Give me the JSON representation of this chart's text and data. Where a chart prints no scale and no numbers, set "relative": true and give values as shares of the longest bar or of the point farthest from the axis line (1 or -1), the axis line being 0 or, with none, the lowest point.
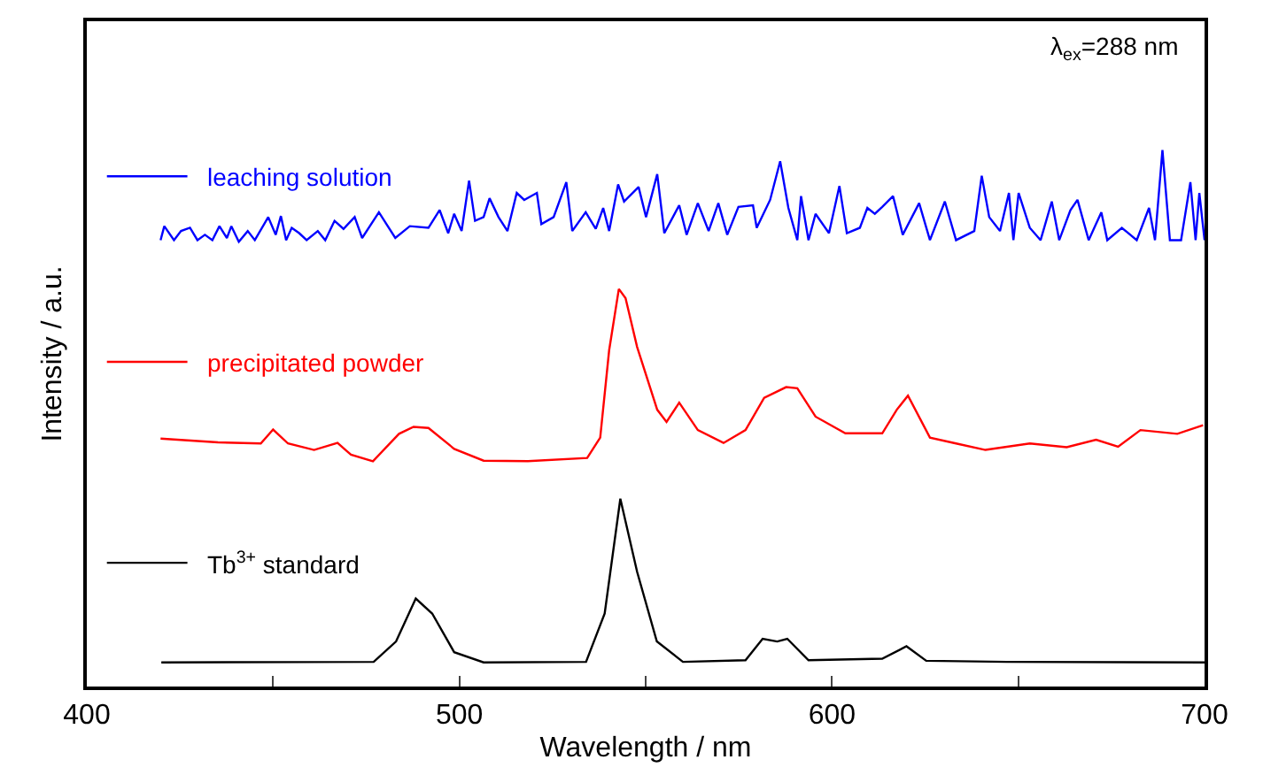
{
  "chart_data": {
    "type": "line",
    "relative": true,
    "legend": "left",
    "xlabel": "Wavelength / nm",
    "ylabel": "Intensity / a.u.",
    "xlim": [
      400,
      700
    ],
    "xticks": [
      400,
      {
        "value": 450,
        "label": null
      },
      500,
      {
        "value": 550,
        "label": null
      },
      600,
      {
        "value": 650,
        "label": null
      },
      700
    ],
    "annotations": [
      "λ$_{ex}$=288 nm"
    ],
    "series": [
      {
        "name": "leaching solution",
        "color": "#0000ff",
        "x": [
          419.8,
          420.8,
          423.4,
          425.3,
          427.7,
          429.7,
          431.7,
          433.7,
          435.6,
          437.6,
          438.8,
          440.8,
          443.2,
          445.1,
          448.7,
          450.7,
          452.1,
          453.5,
          455.0,
          457.0,
          459.0,
          462.0,
          464.0,
          466.5,
          468.9,
          471.9,
          473.9,
          478.4,
          482.8,
          486.7,
          491.7,
          494.7,
          497.0,
          498.6,
          500.6,
          502.6,
          504.2,
          506.5,
          508.1,
          510.5,
          512.9,
          515.4,
          517.4,
          520.8,
          522.0,
          525.3,
          528.7,
          530.3,
          533.9,
          536.6,
          538.6,
          540.2,
          542.6,
          544.2,
          548.1,
          550.1,
          553.1,
          555.0,
          559.0,
          561.0,
          564.0,
          566.9,
          569.5,
          571.9,
          574.9,
          578.8,
          579.8,
          583.4,
          586.1,
          588.3,
          590.7,
          591.7,
          593.7,
          595.6,
          599.2,
          602.0,
          604.0,
          607.5,
          609.5,
          611.5,
          613.5,
          616.4,
          619.0,
          623.4,
          626.3,
          630.3,
          633.3,
          638.2,
          640.2,
          642.2,
          645.1,
          647.5,
          648.7,
          650.1,
          653.1,
          656.0,
          659.0,
          661.0,
          664.0,
          665.9,
          668.9,
          672.3,
          673.9,
          677.8,
          681.8,
          685.1,
          686.7,
          688.7,
          690.7,
          693.7,
          696.2,
          697.6,
          698.6,
          700.0
        ],
        "values": [
          0.832,
          0.858,
          0.832,
          0.849,
          0.855,
          0.832,
          0.842,
          0.832,
          0.858,
          0.836,
          0.858,
          0.829,
          0.849,
          0.832,
          0.875,
          0.842,
          0.877,
          0.832,
          0.855,
          0.845,
          0.832,
          0.849,
          0.832,
          0.868,
          0.853,
          0.875,
          0.836,
          0.884,
          0.836,
          0.858,
          0.855,
          0.888,
          0.845,
          0.881,
          0.849,
          0.943,
          0.868,
          0.875,
          0.91,
          0.875,
          0.849,
          0.92,
          0.907,
          0.92,
          0.862,
          0.875,
          0.94,
          0.849,
          0.884,
          0.853,
          0.892,
          0.849,
          0.936,
          0.904,
          0.931,
          0.875,
          0.955,
          0.845,
          0.897,
          0.842,
          0.901,
          0.849,
          0.901,
          0.842,
          0.894,
          0.897,
          0.855,
          0.907,
          0.979,
          0.892,
          0.832,
          0.914,
          0.832,
          0.881,
          0.845,
          0.933,
          0.845,
          0.855,
          0.892,
          0.881,
          0.894,
          0.914,
          0.842,
          0.901,
          0.832,
          0.904,
          0.832,
          0.849,
          0.952,
          0.875,
          0.849,
          0.92,
          0.832,
          0.92,
          0.855,
          0.832,
          0.904,
          0.832,
          0.888,
          0.907,
          0.832,
          0.884,
          0.832,
          0.855,
          0.832,
          0.892,
          0.832,
          1.0,
          0.832,
          0.832,
          0.94,
          0.832,
          0.92,
          0.832
        ]
      },
      {
        "name": "precipitated powder",
        "color": "#ff0000",
        "x": [
          419.8,
          435.2,
          446.7,
          450.0,
          454.0,
          461.0,
          467.3,
          470.9,
          476.8,
          483.8,
          487.7,
          491.7,
          498.6,
          506.5,
          518.4,
          534.3,
          537.8,
          540.2,
          542.8,
          544.6,
          547.7,
          553.1,
          555.6,
          559.0,
          564.0,
          570.9,
          576.8,
          581.8,
          587.7,
          590.7,
          595.6,
          603.6,
          613.5,
          617.4,
          620.4,
          626.3,
          633.3,
          641.2,
          653.1,
          663.0,
          670.9,
          676.8,
          682.8,
          692.7,
          699.6
        ],
        "values": [
          0.462,
          0.455,
          0.453,
          0.479,
          0.453,
          0.441,
          0.454,
          0.432,
          0.42,
          0.471,
          0.484,
          0.482,
          0.443,
          0.421,
          0.42,
          0.426,
          0.464,
          0.627,
          0.741,
          0.724,
          0.633,
          0.516,
          0.493,
          0.529,
          0.478,
          0.454,
          0.478,
          0.538,
          0.558,
          0.556,
          0.503,
          0.472,
          0.472,
          0.516,
          0.542,
          0.464,
          0.453,
          0.441,
          0.453,
          0.446,
          0.46,
          0.447,
          0.478,
          0.471,
          0.487
        ]
      },
      {
        "name": "Tb$^{3+}$ standard",
        "color": "#000000",
        "x": [
          420,
          477,
          483,
          488.3,
          492.7,
          498.6,
          506.5,
          534,
          539,
          543.2,
          547.7,
          553,
          560,
          576.8,
          581.4,
          585.3,
          588,
          593.7,
          613.5,
          620,
          625.3,
          647,
          700
        ],
        "values": [
          0.045,
          0.046,
          0.084,
          0.164,
          0.136,
          0.064,
          0.045,
          0.046,
          0.136,
          0.35,
          0.214,
          0.084,
          0.046,
          0.049,
          0.089,
          0.084,
          0.089,
          0.049,
          0.052,
          0.075,
          0.048,
          0.046,
          0.045
        ]
      }
    ]
  }
}
